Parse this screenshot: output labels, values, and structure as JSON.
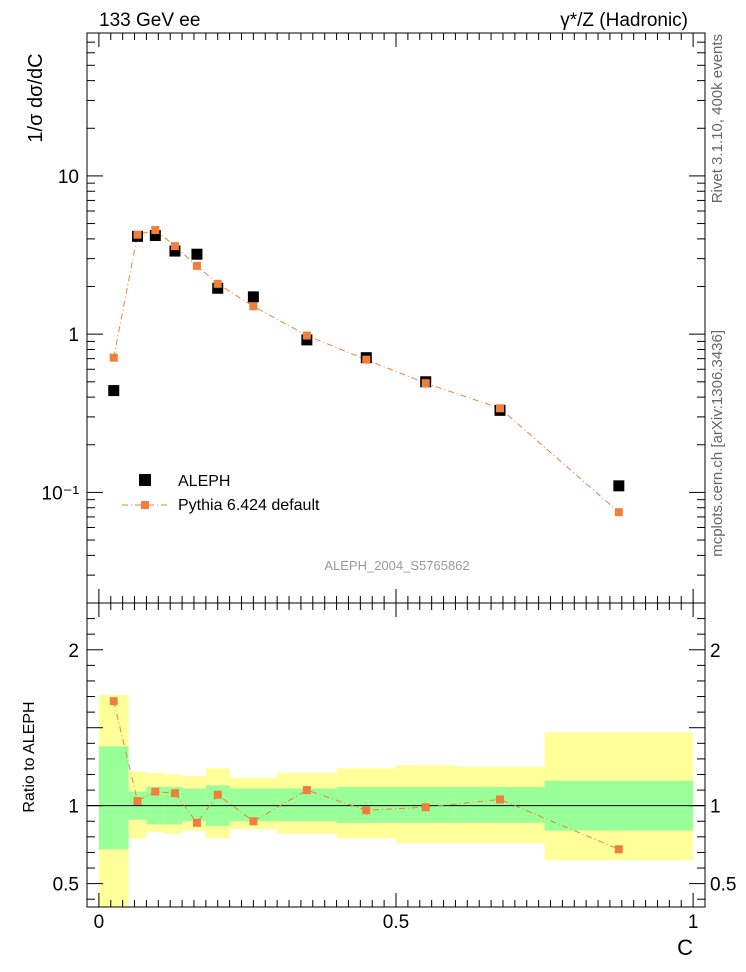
{
  "header": {
    "left_title": "133 GeV ee",
    "right_title": "γ*/Z (Hadronic)"
  },
  "side_labels": {
    "rivet": "Rivet 3.1.10,  400k events",
    "mcplots": "mcplots.cern.ch [arXiv:1306.3436]"
  },
  "watermark": "ALEPH_2004_S5765862",
  "chart_data": [
    {
      "type": "scatter",
      "ylabel": "1/σ  dσ/dC",
      "yscale": "log",
      "ylim": [
        0.02,
        80
      ],
      "xlim": [
        -0.02,
        1.02
      ],
      "yticks": [
        {
          "value": 0.1,
          "label": "10⁻¹"
        },
        {
          "value": 1,
          "label": "1"
        },
        {
          "value": 10,
          "label": "10"
        }
      ],
      "legend": {
        "placement": "lower-left",
        "entries": [
          "ALEPH",
          "Pythia 6.424 default"
        ]
      },
      "x": [
        0.025,
        0.065,
        0.095,
        0.128,
        0.165,
        0.2,
        0.26,
        0.35,
        0.45,
        0.55,
        0.675,
        0.875
      ],
      "series": [
        {
          "name": "ALEPH",
          "color": "#000000",
          "marker": "square",
          "values": [
            0.44,
            4.15,
            4.2,
            3.35,
            3.2,
            1.95,
            1.72,
            0.92,
            0.71,
            0.5,
            0.33,
            0.11
          ]
        },
        {
          "name": "Pythia 6.424 default",
          "color": "#f07f3c",
          "marker": "square",
          "line": "dash-dot",
          "values": [
            0.71,
            4.25,
            4.55,
            3.6,
            2.7,
            2.08,
            1.5,
            0.98,
            0.69,
            0.49,
            0.34,
            0.075
          ]
        }
      ]
    },
    {
      "type": "scatter",
      "ylabel": "Ratio to ALEPH",
      "xlabel": "C",
      "ylim": [
        0.35,
        2.3
      ],
      "xlim": [
        -0.02,
        1.02
      ],
      "yticks": [
        {
          "value": 0.5,
          "label": "0.5"
        },
        {
          "value": 1,
          "label": "1"
        },
        {
          "value": 2,
          "label": "2"
        }
      ],
      "xticks": [
        {
          "value": 0,
          "label": "0"
        },
        {
          "value": 0.5,
          "label": "0.5"
        },
        {
          "value": 1,
          "label": "1"
        }
      ],
      "reference_line": 1,
      "bands": {
        "edges": [
          0,
          0.05,
          0.08,
          0.11,
          0.14,
          0.18,
          0.22,
          0.3,
          0.4,
          0.5,
          0.6,
          0.75,
          1.0
        ],
        "inner_color": "#99ff99",
        "outer_color": "#ffff99",
        "inner_lo": [
          0.72,
          0.91,
          0.88,
          0.88,
          0.9,
          0.87,
          0.9,
          0.9,
          0.89,
          0.89,
          0.89,
          0.84
        ],
        "inner_hi": [
          1.38,
          1.09,
          1.12,
          1.12,
          1.11,
          1.13,
          1.11,
          1.11,
          1.12,
          1.12,
          1.12,
          1.16
        ],
        "outer_lo": [
          0.35,
          0.79,
          0.83,
          0.82,
          0.84,
          0.79,
          0.85,
          0.82,
          0.79,
          0.76,
          0.76,
          0.65
        ],
        "outer_hi": [
          1.71,
          1.22,
          1.21,
          1.2,
          1.19,
          1.24,
          1.18,
          1.21,
          1.24,
          1.26,
          1.25,
          1.47
        ]
      },
      "series": [
        {
          "name": "Pythia 6.424 default",
          "color": "#f07f3c",
          "x": [
            0.025,
            0.065,
            0.095,
            0.128,
            0.165,
            0.2,
            0.26,
            0.35,
            0.45,
            0.55,
            0.675,
            0.875
          ],
          "values": [
            1.67,
            1.03,
            1.09,
            1.08,
            0.89,
            1.07,
            0.9,
            1.1,
            0.97,
            0.99,
            1.04,
            0.72
          ]
        }
      ]
    }
  ]
}
